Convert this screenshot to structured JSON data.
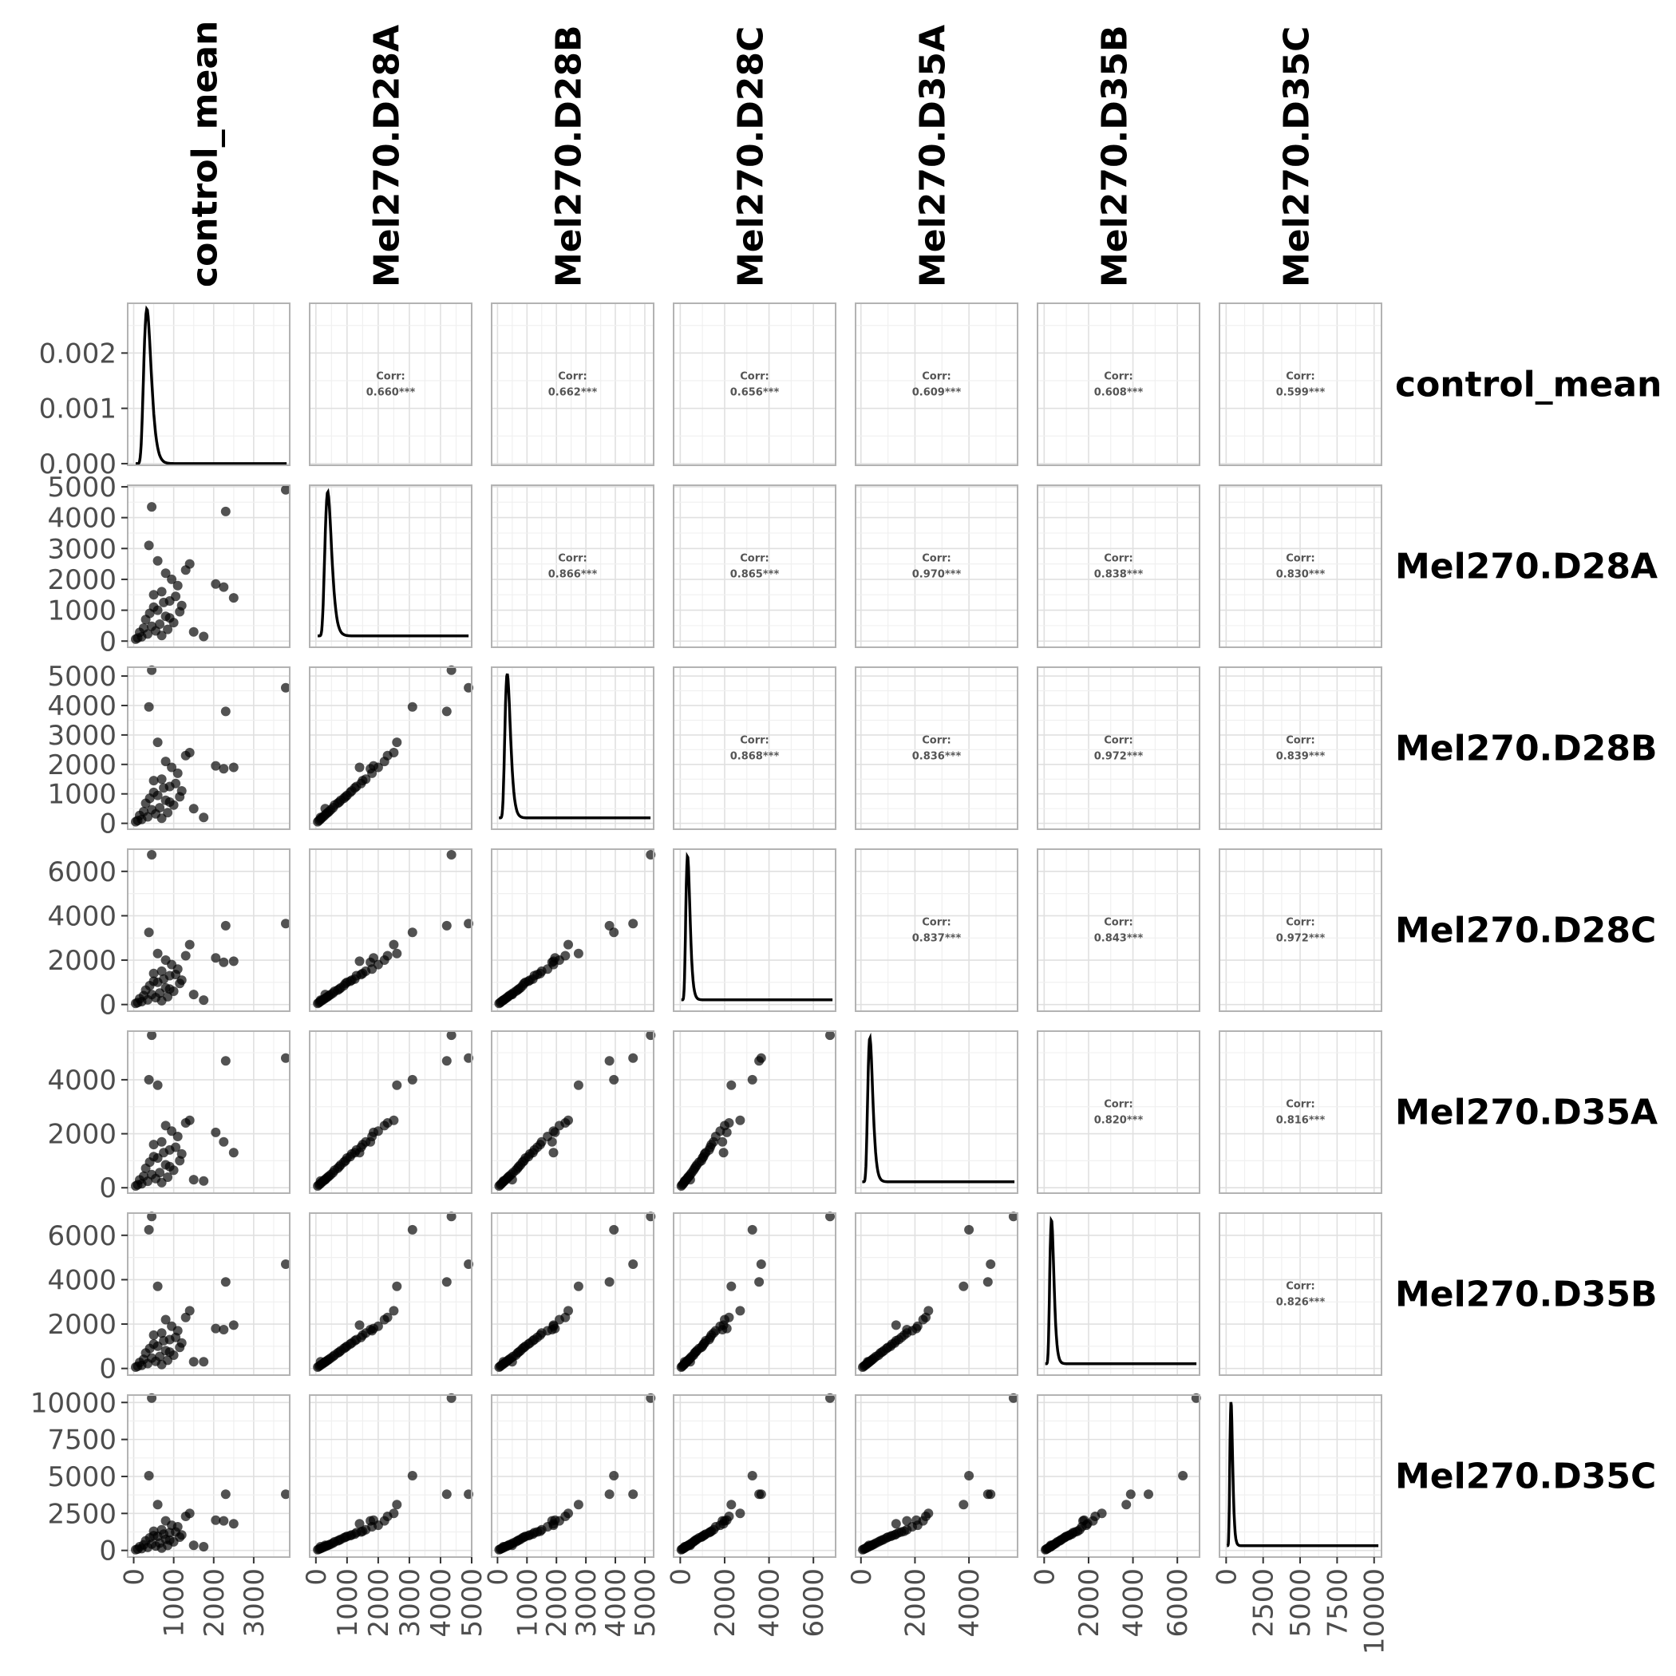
{
  "chart_data": {
    "type": "scatter",
    "variables": [
      "control_mean",
      "Mel270.D28A",
      "Mel270.D28B",
      "Mel270.D28C",
      "Mel270.D35A",
      "Mel270.D35B",
      "Mel270.D35C"
    ],
    "diagonal": "density",
    "corr_label": "Corr:",
    "correlations": [
      {
        "row": "control_mean",
        "col": "Mel270.D28A",
        "value": "0.660***"
      },
      {
        "row": "control_mean",
        "col": "Mel270.D28B",
        "value": "0.662***"
      },
      {
        "row": "control_mean",
        "col": "Mel270.D28C",
        "value": "0.656***"
      },
      {
        "row": "control_mean",
        "col": "Mel270.D35A",
        "value": "0.609***"
      },
      {
        "row": "control_mean",
        "col": "Mel270.D35B",
        "value": "0.608***"
      },
      {
        "row": "control_mean",
        "col": "Mel270.D35C",
        "value": "0.599***"
      },
      {
        "row": "Mel270.D28A",
        "col": "Mel270.D28B",
        "value": "0.866***"
      },
      {
        "row": "Mel270.D28A",
        "col": "Mel270.D28C",
        "value": "0.865***"
      },
      {
        "row": "Mel270.D28A",
        "col": "Mel270.D35A",
        "value": "0.970***"
      },
      {
        "row": "Mel270.D28A",
        "col": "Mel270.D35B",
        "value": "0.838***"
      },
      {
        "row": "Mel270.D28A",
        "col": "Mel270.D35C",
        "value": "0.830***"
      },
      {
        "row": "Mel270.D28B",
        "col": "Mel270.D28C",
        "value": "0.868***"
      },
      {
        "row": "Mel270.D28B",
        "col": "Mel270.D35A",
        "value": "0.836***"
      },
      {
        "row": "Mel270.D28B",
        "col": "Mel270.D35B",
        "value": "0.972***"
      },
      {
        "row": "Mel270.D28B",
        "col": "Mel270.D35C",
        "value": "0.839***"
      },
      {
        "row": "Mel270.D28C",
        "col": "Mel270.D35A",
        "value": "0.837***"
      },
      {
        "row": "Mel270.D28C",
        "col": "Mel270.D35B",
        "value": "0.843***"
      },
      {
        "row": "Mel270.D28C",
        "col": "Mel270.D35C",
        "value": "0.972***"
      },
      {
        "row": "Mel270.D35A",
        "col": "Mel270.D35B",
        "value": "0.820***"
      },
      {
        "row": "Mel270.D35A",
        "col": "Mel270.D35C",
        "value": "0.816***"
      },
      {
        "row": "Mel270.D35B",
        "col": "Mel270.D35C",
        "value": "0.826***"
      }
    ],
    "x_axes": [
      {
        "variable": "control_mean",
        "range": [
          -150,
          3900
        ],
        "ticks": [
          0,
          1000,
          2000,
          3000
        ]
      },
      {
        "variable": "Mel270.D28A",
        "range": [
          -200,
          5000
        ],
        "ticks": [
          0,
          1000,
          2000,
          3000,
          4000,
          5000
        ]
      },
      {
        "variable": "Mel270.D28B",
        "range": [
          -200,
          5300
        ],
        "ticks": [
          0,
          1000,
          2000,
          3000,
          4000,
          5000
        ]
      },
      {
        "variable": "Mel270.D28C",
        "range": [
          -300,
          7000
        ],
        "ticks": [
          0,
          2000,
          4000,
          6000
        ]
      },
      {
        "variable": "Mel270.D35A",
        "range": [
          -200,
          5800
        ],
        "ticks": [
          0,
          2000,
          4000
        ]
      },
      {
        "variable": "Mel270.D35B",
        "range": [
          -300,
          7000
        ],
        "ticks": [
          0,
          2000,
          4000,
          6000
        ]
      },
      {
        "variable": "Mel270.D35C",
        "range": [
          -450,
          10500
        ],
        "ticks": [
          0,
          2500,
          5000,
          7500,
          10000
        ]
      }
    ],
    "y_axes": [
      {
        "variable": "control_mean",
        "range": [
          -3e-05,
          0.0029
        ],
        "ticks": [
          0.0,
          0.001,
          0.002
        ],
        "tick_labels": [
          "0.000",
          "0.001",
          "0.002"
        ]
      },
      {
        "variable": "Mel270.D28A",
        "range": [
          -200,
          5050
        ],
        "ticks": [
          0,
          1000,
          2000,
          3000,
          4000,
          5000
        ]
      },
      {
        "variable": "Mel270.D28B",
        "range": [
          -200,
          5300
        ],
        "ticks": [
          0,
          1000,
          2000,
          3000,
          4000,
          5000
        ]
      },
      {
        "variable": "Mel270.D28C",
        "range": [
          -300,
          7000
        ],
        "ticks": [
          0,
          2000,
          4000,
          6000
        ]
      },
      {
        "variable": "Mel270.D35A",
        "range": [
          -200,
          5800
        ],
        "ticks": [
          0,
          2000,
          4000
        ]
      },
      {
        "variable": "Mel270.D35B",
        "range": [
          -300,
          7000
        ],
        "ticks": [
          0,
          2000,
          4000,
          6000
        ]
      },
      {
        "variable": "Mel270.D35C",
        "range": [
          -450,
          10500
        ],
        "ticks": [
          0,
          2500,
          5000,
          7500,
          10000
        ]
      }
    ],
    "density_peaks": [
      {
        "variable": "control_mean",
        "mode": 330,
        "peak_height": 0.0028
      },
      {
        "variable": "Mel270.D28A",
        "mode": 380
      },
      {
        "variable": "Mel270.D28B",
        "mode": 330
      },
      {
        "variable": "Mel270.D28C",
        "mode": 330
      },
      {
        "variable": "Mel270.D35A",
        "mode": 330
      },
      {
        "variable": "Mel270.D35B",
        "mode": 330
      },
      {
        "variable": "Mel270.D35C",
        "mode": 330
      }
    ],
    "scatter_points": [
      {
        "control_mean": 3800,
        "Mel270.D28A": 4900,
        "Mel270.D28B": 4600,
        "Mel270.D28C": 3650,
        "Mel270.D35A": 4800,
        "Mel270.D35B": 4700,
        "Mel270.D35C": 3800
      },
      {
        "control_mean": 450,
        "Mel270.D28A": 4350,
        "Mel270.D28B": 5200,
        "Mel270.D28C": 6750,
        "Mel270.D35A": 5650,
        "Mel270.D35B": 6850,
        "Mel270.D35C": 10300
      },
      {
        "control_mean": 2300,
        "Mel270.D28A": 4200,
        "Mel270.D28B": 3800,
        "Mel270.D28C": 3550,
        "Mel270.D35A": 4700,
        "Mel270.D35B": 3900,
        "Mel270.D35C": 3800
      },
      {
        "control_mean": 380,
        "Mel270.D28A": 3100,
        "Mel270.D28B": 3950,
        "Mel270.D28C": 3250,
        "Mel270.D35A": 4000,
        "Mel270.D35B": 6250,
        "Mel270.D35C": 5050
      },
      {
        "control_mean": 2500,
        "Mel270.D28A": 1400,
        "Mel270.D28B": 1900,
        "Mel270.D28C": 1950,
        "Mel270.D35A": 1300,
        "Mel270.D35B": 1950,
        "Mel270.D35C": 1800
      },
      {
        "control_mean": 2050,
        "Mel270.D28A": 1850,
        "Mel270.D28B": 1950,
        "Mel270.D28C": 2100,
        "Mel270.D35A": 2050,
        "Mel270.D35B": 1800,
        "Mel270.D35C": 2050
      },
      {
        "control_mean": 2250,
        "Mel270.D28A": 1750,
        "Mel270.D28B": 1850,
        "Mel270.D28C": 1900,
        "Mel270.D35A": 1700,
        "Mel270.D35B": 1750,
        "Mel270.D35C": 2000
      },
      {
        "control_mean": 1750,
        "Mel270.D28A": 150,
        "Mel270.D28B": 200,
        "Mel270.D28C": 200,
        "Mel270.D35A": 250,
        "Mel270.D35B": 300,
        "Mel270.D35C": 250
      },
      {
        "control_mean": 1500,
        "Mel270.D28A": 300,
        "Mel270.D28B": 500,
        "Mel270.D28C": 450,
        "Mel270.D35A": 300,
        "Mel270.D35B": 300,
        "Mel270.D35C": 350
      },
      {
        "control_mean": 1400,
        "Mel270.D28A": 2500,
        "Mel270.D28B": 2400,
        "Mel270.D28C": 2700,
        "Mel270.D35A": 2500,
        "Mel270.D35B": 2600,
        "Mel270.D35C": 2500
      },
      {
        "control_mean": 600,
        "Mel270.D28A": 2600,
        "Mel270.D28B": 2750,
        "Mel270.D28C": 2300,
        "Mel270.D35A": 3800,
        "Mel270.D35B": 3700,
        "Mel270.D35C": 3100
      },
      {
        "control_mean": 1300,
        "Mel270.D28A": 2300,
        "Mel270.D28B": 2300,
        "Mel270.D28C": 2200,
        "Mel270.D35A": 2400,
        "Mel270.D35B": 2300,
        "Mel270.D35C": 2300
      },
      {
        "control_mean": 800,
        "Mel270.D28A": 2200,
        "Mel270.D28B": 2100,
        "Mel270.D28C": 2000,
        "Mel270.D35A": 2300,
        "Mel270.D35B": 2200,
        "Mel270.D35C": 2000
      },
      {
        "control_mean": 950,
        "Mel270.D28A": 2000,
        "Mel270.D28B": 1900,
        "Mel270.D28C": 1800,
        "Mel270.D35A": 2100,
        "Mel270.D35B": 1900,
        "Mel270.D35C": 1700
      },
      {
        "control_mean": 1100,
        "Mel270.D28A": 1800,
        "Mel270.D28B": 1700,
        "Mel270.D28C": 1600,
        "Mel270.D35A": 1900,
        "Mel270.D35B": 1700,
        "Mel270.D35C": 1600
      },
      {
        "control_mean": 700,
        "Mel270.D28A": 1600,
        "Mel270.D28B": 1500,
        "Mel270.D28C": 1500,
        "Mel270.D35A": 1700,
        "Mel270.D35B": 1600,
        "Mel270.D35C": 1400
      },
      {
        "control_mean": 500,
        "Mel270.D28A": 1500,
        "Mel270.D28B": 1450,
        "Mel270.D28C": 1400,
        "Mel270.D35A": 1600,
        "Mel270.D35B": 1500,
        "Mel270.D35C": 1300
      },
      {
        "control_mean": 900,
        "Mel270.D28A": 1300,
        "Mel270.D28B": 1250,
        "Mel270.D28C": 1300,
        "Mel270.D35A": 1400,
        "Mel270.D35B": 1300,
        "Mel270.D35C": 1200
      },
      {
        "control_mean": 1200,
        "Mel270.D28A": 1150,
        "Mel270.D28B": 1100,
        "Mel270.D28C": 1100,
        "Mel270.D35A": 1250,
        "Mel270.D35B": 1150,
        "Mel270.D35C": 1050
      },
      {
        "control_mean": 600,
        "Mel270.D28A": 1000,
        "Mel270.D28B": 950,
        "Mel270.D28C": 1000,
        "Mel270.D35A": 1100,
        "Mel270.D35B": 1000,
        "Mel270.D35C": 950
      },
      {
        "control_mean": 400,
        "Mel270.D28A": 900,
        "Mel270.D28B": 850,
        "Mel270.D28C": 850,
        "Mel270.D35A": 950,
        "Mel270.D35B": 900,
        "Mel270.D35C": 850
      },
      {
        "control_mean": 800,
        "Mel270.D28A": 800,
        "Mel270.D28B": 780,
        "Mel270.D28C": 750,
        "Mel270.D35A": 850,
        "Mel270.D35B": 800,
        "Mel270.D35C": 750
      },
      {
        "control_mean": 300,
        "Mel270.D28A": 700,
        "Mel270.D28B": 680,
        "Mel270.D28C": 650,
        "Mel270.D35A": 720,
        "Mel270.D35B": 700,
        "Mel270.D35C": 650
      },
      {
        "control_mean": 1000,
        "Mel270.D28A": 600,
        "Mel270.D28B": 620,
        "Mel270.D28C": 600,
        "Mel270.D35A": 650,
        "Mel270.D35B": 600,
        "Mel270.D35C": 580
      },
      {
        "control_mean": 650,
        "Mel270.D28A": 550,
        "Mel270.D28B": 530,
        "Mel270.D28C": 520,
        "Mel270.D35A": 560,
        "Mel270.D35B": 540,
        "Mel270.D35C": 500
      },
      {
        "control_mean": 450,
        "Mel270.D28A": 480,
        "Mel270.D28B": 460,
        "Mel270.D28C": 450,
        "Mel270.D35A": 490,
        "Mel270.D35B": 470,
        "Mel270.D35C": 430
      },
      {
        "control_mean": 250,
        "Mel270.D28A": 420,
        "Mel270.D28B": 400,
        "Mel270.D28C": 400,
        "Mel270.D35A": 430,
        "Mel270.D35B": 410,
        "Mel270.D35C": 380
      },
      {
        "control_mean": 850,
        "Mel270.D28A": 380,
        "Mel270.D28B": 360,
        "Mel270.D28C": 350,
        "Mel270.D35A": 390,
        "Mel270.D35B": 370,
        "Mel270.D35C": 340
      },
      {
        "control_mean": 550,
        "Mel270.D28A": 330,
        "Mel270.D28B": 320,
        "Mel270.D28C": 310,
        "Mel270.D35A": 340,
        "Mel270.D35B": 320,
        "Mel270.D35C": 300
      },
      {
        "control_mean": 150,
        "Mel270.D28A": 280,
        "Mel270.D28B": 270,
        "Mel270.D28C": 260,
        "Mel270.D35A": 290,
        "Mel270.D35B": 270,
        "Mel270.D35C": 250
      },
      {
        "control_mean": 350,
        "Mel270.D28A": 230,
        "Mel270.D28B": 220,
        "Mel270.D28C": 210,
        "Mel270.D35A": 240,
        "Mel270.D35B": 220,
        "Mel270.D35C": 200
      },
      {
        "control_mean": 700,
        "Mel270.D28A": 180,
        "Mel270.D28B": 170,
        "Mel270.D28C": 170,
        "Mel270.D35A": 190,
        "Mel270.D35B": 180,
        "Mel270.D35C": 160
      },
      {
        "control_mean": 200,
        "Mel270.D28A": 140,
        "Mel270.D28B": 130,
        "Mel270.D28C": 130,
        "Mel270.D35A": 150,
        "Mel270.D35B": 140,
        "Mel270.D35C": 120
      },
      {
        "control_mean": 100,
        "Mel270.D28A": 100,
        "Mel270.D28B": 95,
        "Mel270.D28C": 90,
        "Mel270.D35A": 110,
        "Mel270.D35B": 100,
        "Mel270.D35C": 90
      },
      {
        "control_mean": 50,
        "Mel270.D28A": 60,
        "Mel270.D28B": 55,
        "Mel270.D28C": 50,
        "Mel270.D35A": 65,
        "Mel270.D35B": 60,
        "Mel270.D35C": 50
      },
      {
        "control_mean": 1050,
        "Mel270.D28A": 1450,
        "Mel270.D28B": 1350,
        "Mel270.D28C": 1350,
        "Mel270.D35A": 1500,
        "Mel270.D35B": 1400,
        "Mel270.D35C": 1250
      },
      {
        "control_mean": 750,
        "Mel270.D28A": 1250,
        "Mel270.D28B": 1200,
        "Mel270.D28C": 1150,
        "Mel270.D35A": 1300,
        "Mel270.D35B": 1250,
        "Mel270.D35C": 1100
      },
      {
        "control_mean": 1150,
        "Mel270.D28A": 950,
        "Mel270.D28B": 900,
        "Mel270.D28C": 950,
        "Mel270.D35A": 1000,
        "Mel270.D35B": 950,
        "Mel270.D35C": 900
      },
      {
        "control_mean": 500,
        "Mel270.D28A": 1100,
        "Mel270.D28B": 1050,
        "Mel270.D28C": 1050,
        "Mel270.D35A": 1150,
        "Mel270.D35B": 1100,
        "Mel270.D35C": 1000
      },
      {
        "control_mean": 900,
        "Mel270.D28A": 750,
        "Mel270.D28B": 720,
        "Mel270.D28C": 700,
        "Mel270.D35A": 780,
        "Mel270.D35B": 740,
        "Mel270.D35C": 700
      }
    ]
  }
}
